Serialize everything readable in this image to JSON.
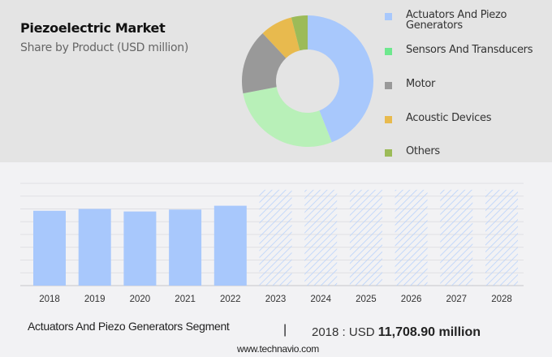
{
  "header": {
    "title": "Piezoelectric Market",
    "subtitle": "Share by Product (USD million)"
  },
  "legend": {
    "items": [
      {
        "label": "Actuators And Piezo Generators",
        "color": "#a8c8fc"
      },
      {
        "label": "Sensors And Transducers",
        "color": "#6ee88e"
      },
      {
        "label": "Motor",
        "color": "#999999"
      },
      {
        "label": "Acoustic Devices",
        "color": "#e8ba4e"
      },
      {
        "label": "Others",
        "color": "#9cbb58"
      }
    ]
  },
  "footer": {
    "segment_label": "Actuators And Piezo Generators Segment",
    "separator": "|",
    "value_prefix": "2018 : USD",
    "value_bold": "11,708.90 million",
    "url": "www.technavio.com"
  },
  "chart_data": [
    {
      "type": "pie",
      "title": "Share by Product (USD million)",
      "variant": "donut",
      "categories": [
        "Actuators And Piezo Generators",
        "Sensors And Transducers",
        "Motor",
        "Acoustic Devices",
        "Others"
      ],
      "values": [
        44,
        28,
        16,
        8,
        4
      ],
      "colors": [
        "#a8c8fc",
        "#b8f0b8",
        "#999999",
        "#e8ba4e",
        "#9cbb58"
      ],
      "legend_position": "right"
    },
    {
      "type": "bar",
      "title": "Actuators And Piezo Generators Segment",
      "categories": [
        "2018",
        "2019",
        "2020",
        "2021",
        "2022",
        "2023",
        "2024",
        "2025",
        "2026",
        "2027",
        "2028"
      ],
      "values": [
        11708.9,
        12000,
        11600,
        11900,
        12500,
        null,
        null,
        null,
        null,
        null,
        null
      ],
      "forecast": [
        false,
        false,
        false,
        false,
        false,
        true,
        true,
        true,
        true,
        true,
        true
      ],
      "forecast_height": 15000,
      "xlabel": "",
      "ylabel": "",
      "ylim": [
        0,
        16000
      ],
      "grid": true,
      "colors": {
        "bar": "#a8c8fc",
        "forecast_hatch": "#b9d2fb"
      }
    }
  ]
}
